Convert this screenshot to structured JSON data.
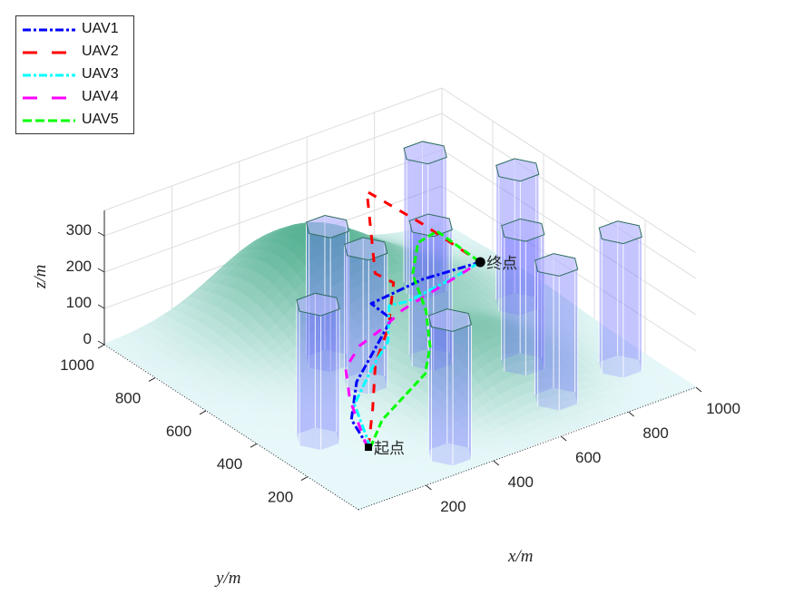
{
  "chart_data": {
    "type": "3d-line-surface",
    "xlabel": "x/m",
    "ylabel": "y/m",
    "zlabel": "z/m",
    "xlim": [
      0,
      1000
    ],
    "ylim": [
      0,
      1000
    ],
    "zlim": [
      0,
      370
    ],
    "xticks": [
      "200",
      "400",
      "600",
      "800",
      "1000"
    ],
    "xtick_values": [
      200,
      400,
      600,
      800,
      1000
    ],
    "yticks": [
      "200",
      "400",
      "600",
      "800",
      "1000"
    ],
    "ytick_values": [
      200,
      400,
      600,
      800,
      1000
    ],
    "zticks": [
      "0",
      "100",
      "200",
      "300"
    ],
    "ztick_values": [
      0,
      100,
      200,
      300
    ],
    "grid": true,
    "legend_placement": "top-left",
    "start": {
      "label": "起点",
      "point": [
        202,
        229,
        0
      ]
    },
    "end": {
      "label": "终点",
      "point": [
        850,
        650,
        100
      ]
    },
    "terrain_peaks": [
      {
        "center": [
          500,
          850
        ],
        "height": 210,
        "spread": 170
      },
      {
        "center": [
          620,
          340
        ],
        "height": 130,
        "spread": 130
      },
      {
        "center": [
          760,
          640
        ],
        "height": 60,
        "spread": 140
      }
    ],
    "obstacles": {
      "shape": "hexagonal-prism",
      "radius": 55,
      "height": 370,
      "centers": [
        [
          131,
          333
        ],
        [
          377,
          622
        ],
        [
          385,
          482
        ],
        [
          779,
          772
        ],
        [
          577,
          482
        ],
        [
          904,
          575
        ],
        [
          738,
          333
        ],
        [
          336,
          86
        ],
        [
          700,
          151
        ],
        [
          917,
          187
        ]
      ]
    },
    "series": [
      {
        "name": "UAV1",
        "color": "#0000ff",
        "dash": "dashdot",
        "points": [
          [
            202,
            229,
            0
          ],
          [
            208,
            304,
            40
          ],
          [
            286,
            387,
            80
          ],
          [
            493,
            525,
            120
          ],
          [
            479,
            586,
            140
          ],
          [
            668,
            636,
            120
          ],
          [
            850,
            650,
            100
          ]
        ]
      },
      {
        "name": "UAV2",
        "color": "#ff0000",
        "dash": "longdash",
        "points": [
          [
            202,
            229,
            0
          ],
          [
            259,
            288,
            60
          ],
          [
            343,
            389,
            110
          ],
          [
            441,
            468,
            140
          ],
          [
            540,
            579,
            180
          ],
          [
            511,
            613,
            200
          ],
          [
            597,
            760,
            330
          ],
          [
            682,
            654,
            260
          ],
          [
            850,
            650,
            100
          ]
        ]
      },
      {
        "name": "UAV3",
        "color": "#00ffff",
        "dash": "dashdot",
        "points": [
          [
            205,
            225,
            0
          ],
          [
            248,
            345,
            50
          ],
          [
            344,
            404,
            90
          ],
          [
            432,
            457,
            110
          ],
          [
            507,
            553,
            140
          ],
          [
            565,
            557,
            130
          ],
          [
            725,
            603,
            115
          ],
          [
            850,
            650,
            100
          ]
        ]
      },
      {
        "name": "UAV4",
        "color": "#ff00ff",
        "dash": "longdash",
        "points": [
          [
            198,
            228,
            0
          ],
          [
            242,
            355,
            60
          ],
          [
            284,
            428,
            100
          ],
          [
            356,
            467,
            120
          ],
          [
            432,
            475,
            140
          ],
          [
            520,
            517,
            140
          ],
          [
            850,
            650,
            100
          ]
        ]
      },
      {
        "name": "UAV5",
        "color": "#00ff00",
        "dash": "dash",
        "points": [
          [
            205,
            225,
            0
          ],
          [
            286,
            287,
            20
          ],
          [
            482,
            378,
            40
          ],
          [
            539,
            434,
            70
          ],
          [
            584,
            510,
            120
          ],
          [
            622,
            613,
            160
          ],
          [
            682,
            672,
            200
          ],
          [
            752,
            690,
            200
          ],
          [
            850,
            650,
            100
          ]
        ]
      }
    ]
  }
}
